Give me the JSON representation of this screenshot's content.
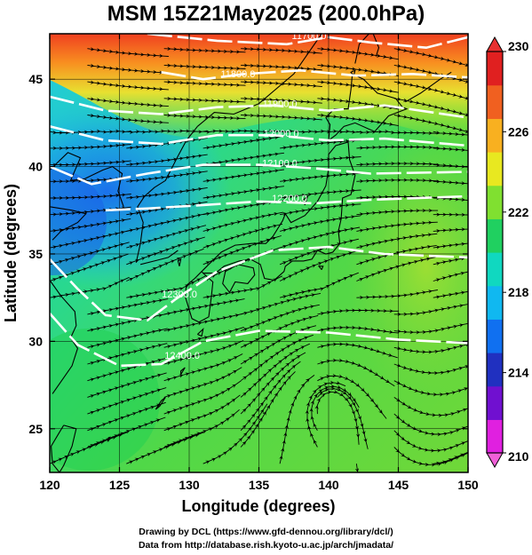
{
  "title": "MSM 15Z21May2025 (200.0hPa)",
  "credits": {
    "line1": "Drawing by DCL (https://www.gfd-dennou.org/library/dcl/)",
    "line2": "Data from http://database.rish.kyoto-u.ac.jp/arch/jmadata/"
  },
  "chart_data": {
    "type": "heatmap",
    "title": "MSM 15Z21May2025 (200.0hPa)",
    "xlabel": "Longitude (degrees)",
    "ylabel": "Latitude  (degrees)",
    "xlim": [
      120,
      150
    ],
    "ylim": [
      22.5,
      47.6
    ],
    "x_ticks": [
      120,
      125,
      130,
      135,
      140,
      145,
      150
    ],
    "y_ticks": [
      25,
      30,
      35,
      40,
      45
    ],
    "colorbar": {
      "range": [
        210,
        230
      ],
      "ticks": [
        210,
        214,
        218,
        222,
        226,
        230
      ],
      "colors": [
        "#e020e0",
        "#7010d0",
        "#2030c0",
        "#1070f0",
        "#10b8f0",
        "#10d8c0",
        "#20d060",
        "#80e030",
        "#e8e820",
        "#f8b020",
        "#f06020",
        "#e02020"
      ]
    },
    "contours": [
      {
        "label": "11700.0",
        "value": 11700,
        "label_lon": 138.6,
        "label_lat": 47.3
      },
      {
        "label": "11800.0",
        "value": 11800,
        "label_lon": 133.5,
        "label_lat": 45.1
      },
      {
        "label": "11900.0",
        "value": 11900,
        "label_lon": 136.5,
        "label_lat": 43.4
      },
      {
        "label": "12000.0",
        "value": 12000,
        "label_lon": 136.6,
        "label_lat": 41.7
      },
      {
        "label": "12100.0",
        "value": 12100,
        "label_lon": 136.5,
        "label_lat": 40.0
      },
      {
        "label": "12200.0",
        "value": 12200,
        "label_lon": 137.2,
        "label_lat": 38.0
      },
      {
        "label": "12300.0",
        "value": 12300,
        "label_lon": 129.3,
        "label_lat": 32.5
      },
      {
        "label": "12400.0",
        "value": 12400,
        "label_lon": 129.5,
        "label_lat": 29.0
      }
    ],
    "wind": "streamlines",
    "grid": true,
    "coastlines": true
  }
}
